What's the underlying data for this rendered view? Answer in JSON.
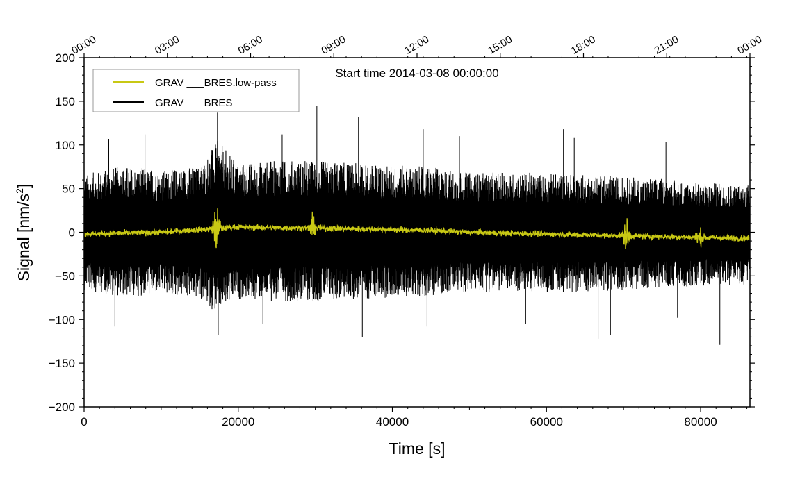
{
  "chart_data": {
    "type": "line",
    "start_time_label": "Start time 2014-03-08 00:00:00",
    "xlabel": "Time [s]",
    "ylabel_main": "Signal [nm/s",
    "ylabel_sup": "2",
    "ylabel_close": "]",
    "xlim": [
      0,
      86400
    ],
    "ylim": [
      -200,
      200
    ],
    "x_ticks": [
      0,
      20000,
      40000,
      60000,
      80000
    ],
    "x_tick_labels": [
      "0",
      "20000",
      "40000",
      "60000",
      "80000"
    ],
    "y_ticks": [
      -200,
      -150,
      -100,
      -50,
      0,
      50,
      100,
      150,
      200
    ],
    "y_tick_labels": [
      "−200",
      "−150",
      "−100",
      "−50",
      "0",
      "50",
      "100",
      "150",
      "200"
    ],
    "top_ticks_seconds": [
      0,
      10800,
      21600,
      32400,
      43200,
      54000,
      64800,
      75600,
      86400
    ],
    "top_tick_labels": [
      "00:00",
      "03:00",
      "06:00",
      "09:00",
      "12:00",
      "15:00",
      "18:00",
      "21:00",
      "00:00"
    ],
    "legend_placement": "top-left",
    "series": [
      {
        "name": "GRAV ___BRES",
        "color": "#000000",
        "envelope_x": [
          0,
          5000,
          10000,
          15000,
          17300,
          20000,
          25000,
          30000,
          35000,
          40000,
          45000,
          50000,
          55000,
          60000,
          65000,
          70000,
          75000,
          80000,
          86400
        ],
        "envelope_upper": [
          60,
          70,
          65,
          70,
          95,
          72,
          75,
          75,
          72,
          70,
          68,
          62,
          62,
          62,
          60,
          58,
          56,
          52,
          50
        ],
        "envelope_lower": [
          -60,
          -68,
          -65,
          -70,
          -85,
          -70,
          -72,
          -72,
          -70,
          -68,
          -66,
          -62,
          -62,
          -62,
          -62,
          -60,
          -58,
          -56,
          -55
        ],
        "spikes": [
          {
            "x": 17300,
            "y": 137
          },
          {
            "x": 30200,
            "y": 145
          },
          {
            "x": 35600,
            "y": 132
          },
          {
            "x": 44000,
            "y": 118
          },
          {
            "x": 3200,
            "y": 107
          },
          {
            "x": 7900,
            "y": 112
          },
          {
            "x": 25700,
            "y": 112
          },
          {
            "x": 48700,
            "y": 110
          },
          {
            "x": 62200,
            "y": 118
          },
          {
            "x": 63600,
            "y": 108
          },
          {
            "x": 75500,
            "y": 103
          },
          {
            "x": 17400,
            "y": -118
          },
          {
            "x": 36100,
            "y": -120
          },
          {
            "x": 66700,
            "y": -122
          },
          {
            "x": 68300,
            "y": -118
          },
          {
            "x": 82500,
            "y": -129
          },
          {
            "x": 4000,
            "y": -108
          },
          {
            "x": 23200,
            "y": -105
          },
          {
            "x": 44500,
            "y": -108
          },
          {
            "x": 57300,
            "y": -105
          },
          {
            "x": 77000,
            "y": -98
          }
        ]
      },
      {
        "name": "GRAV ___BRES.low-pass",
        "color": "#c8c814",
        "trend_x": [
          0,
          10000,
          16800,
          20000,
          25000,
          30000,
          35000,
          40000,
          45000,
          50000,
          55000,
          60000,
          65000,
          70000,
          75000,
          80000,
          86400
        ],
        "trend_y": [
          -2,
          0,
          4,
          6,
          5,
          5,
          4,
          3,
          2,
          0,
          -1,
          -2,
          -3,
          -4,
          -5,
          -6,
          -7
        ],
        "bursts": [
          {
            "x": 17200,
            "amp": 18
          },
          {
            "x": 29600,
            "amp": 7
          },
          {
            "x": 70400,
            "amp": 12
          },
          {
            "x": 79800,
            "amp": 6
          }
        ]
      }
    ]
  }
}
